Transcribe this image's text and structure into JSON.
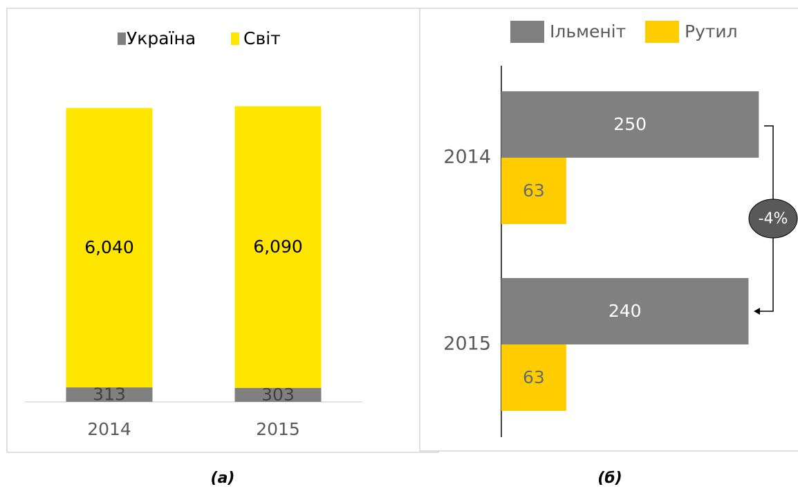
{
  "chart_data": [
    {
      "type": "stacked-bar",
      "caption": "(а)",
      "categories": [
        "2014",
        "2015"
      ],
      "series": [
        {
          "name": "Україна",
          "color": "#808080",
          "values": [
            313,
            303
          ]
        },
        {
          "name": "Світ",
          "color": "#ffe600",
          "values": [
            6040,
            6090
          ],
          "value_labels": [
            "6,040",
            "6,090"
          ]
        }
      ],
      "ylim": [
        0,
        7000
      ],
      "legend": "top"
    },
    {
      "type": "hbar",
      "caption": "(б)",
      "categories": [
        "2014",
        "2015"
      ],
      "series": [
        {
          "name": "Ільменіт",
          "color": "#808080",
          "values": [
            250,
            240
          ]
        },
        {
          "name": "Рутил",
          "color": "#ffcc00",
          "values": [
            63,
            63
          ]
        }
      ],
      "xlim": [
        0,
        280
      ],
      "annotation": "-4%",
      "legend": "top"
    }
  ]
}
